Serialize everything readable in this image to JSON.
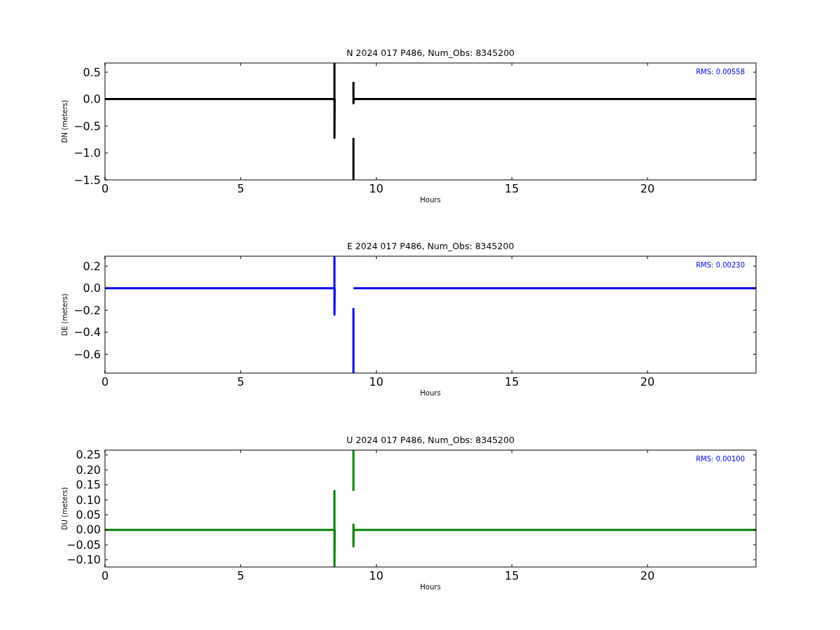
{
  "chart_data": [
    {
      "type": "line",
      "title": "N 2024 017  P486, Num_Obs: 8345200",
      "xlabel": "Hours",
      "ylabel": "DN (meters)",
      "annotations": [
        "RMS:  0.00558"
      ],
      "marker": "none",
      "xlim": [
        0,
        24
      ],
      "xticks": [
        0,
        5,
        10,
        15,
        20
      ],
      "ylim": [
        -1.5,
        0.67
      ],
      "yticks": [
        {
          "value": 0.5,
          "label": "0.5"
        },
        {
          "value": 0,
          "label": "0.0"
        },
        {
          "value": -0.5,
          "label": "−0.5"
        },
        {
          "value": -1.0,
          "label": "−1.0"
        },
        {
          "value": -1.5,
          "label": "−1.5"
        }
      ],
      "series": [
        {
          "color": "#000000",
          "x": [
            0,
            8.46,
            8.46,
            8.46,
            8.47
          ],
          "values": [
            0,
            0,
            0.67,
            -0.72,
            0
          ]
        },
        {
          "color": "#000000",
          "x": [
            9.16,
            9.16
          ],
          "values": [
            -0.72,
            -1.5
          ]
        },
        {
          "color": "#000000",
          "x": [
            9.16,
            9.16,
            9.17,
            24
          ],
          "values": [
            0.32,
            -0.08,
            0,
            0
          ]
        }
      ]
    },
    {
      "type": "line",
      "title": "E 2024 017  P486, Num_Obs: 8345200",
      "xlabel": "Hours",
      "ylabel": "DE (meters)",
      "annotations": [
        "RMS:  0.00230"
      ],
      "marker": "none",
      "xlim": [
        0,
        24
      ],
      "xticks": [
        0,
        5,
        10,
        15,
        20
      ],
      "ylim": [
        -0.77,
        0.29
      ],
      "yticks": [
        {
          "value": 0.2,
          "label": "0.2"
        },
        {
          "value": 0,
          "label": "0.0"
        },
        {
          "value": -0.2,
          "label": "−0.2"
        },
        {
          "value": -0.4,
          "label": "−0.4"
        },
        {
          "value": -0.6,
          "label": "−0.6"
        }
      ],
      "series": [
        {
          "color": "#0000ff",
          "x": [
            0,
            8.46,
            8.46,
            8.46,
            8.47
          ],
          "values": [
            0,
            0,
            0.29,
            -0.24,
            0
          ]
        },
        {
          "color": "#0000ff",
          "x": [
            9.16,
            9.16
          ],
          "values": [
            -0.18,
            -0.77
          ]
        },
        {
          "color": "#0000ff",
          "x": [
            9.16,
            24
          ],
          "values": [
            0,
            0
          ]
        }
      ]
    },
    {
      "type": "line",
      "title": "U 2024 017  P486, Num_Obs: 8345200",
      "xlabel": "Hours",
      "ylabel": "DU (meters)",
      "annotations": [
        "RMS:  0.00100"
      ],
      "marker": "none",
      "xlim": [
        0,
        24
      ],
      "xticks": [
        0,
        5,
        10,
        15,
        20
      ],
      "ylim": [
        -0.124,
        0.266
      ],
      "yticks": [
        {
          "value": 0.25,
          "label": "0.25"
        },
        {
          "value": 0.2,
          "label": "0.20"
        },
        {
          "value": 0.15,
          "label": "0.15"
        },
        {
          "value": 0.1,
          "label": "0.10"
        },
        {
          "value": 0.05,
          "label": "0.05"
        },
        {
          "value": 0,
          "label": "0.00"
        },
        {
          "value": -0.05,
          "label": "−0.05"
        },
        {
          "value": -0.1,
          "label": "−0.10"
        }
      ],
      "series": [
        {
          "color": "#008000",
          "x": [
            0,
            8.46,
            8.46,
            8.46,
            8.47
          ],
          "values": [
            0,
            0,
            0.13,
            -0.124,
            0
          ]
        },
        {
          "color": "#008000",
          "x": [
            9.16,
            9.16
          ],
          "values": [
            0.266,
            0.13
          ]
        },
        {
          "color": "#008000",
          "x": [
            9.16,
            9.16,
            9.17,
            24
          ],
          "values": [
            0.02,
            -0.055,
            0,
            0
          ]
        }
      ]
    }
  ]
}
